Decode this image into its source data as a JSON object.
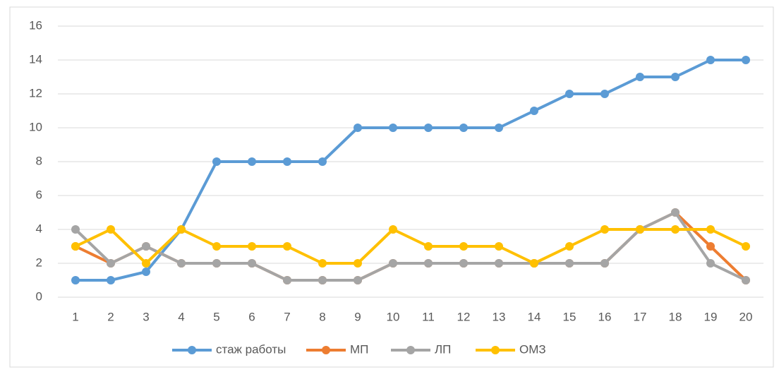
{
  "chart_data": {
    "type": "line",
    "categories": [
      "1",
      "2",
      "3",
      "4",
      "5",
      "6",
      "7",
      "8",
      "9",
      "10",
      "11",
      "12",
      "13",
      "14",
      "15",
      "16",
      "17",
      "18",
      "19",
      "20"
    ],
    "series": [
      {
        "name": "стаж работы",
        "color": "#5b9bd5",
        "values": [
          1,
          1,
          1.5,
          4,
          8,
          8,
          8,
          8,
          10,
          10,
          10,
          10,
          10,
          11,
          12,
          12,
          13,
          13,
          14,
          14
        ]
      },
      {
        "name": "МП",
        "color": "#ed7d31",
        "values": [
          3,
          2,
          3,
          2,
          2,
          2,
          1,
          1,
          1,
          2,
          2,
          2,
          2,
          2,
          2,
          2,
          4,
          5,
          3,
          1
        ]
      },
      {
        "name": "ЛП",
        "color": "#a5a5a5",
        "values": [
          4,
          2,
          3,
          2,
          2,
          2,
          1,
          1,
          1,
          2,
          2,
          2,
          2,
          2,
          2,
          2,
          4,
          5,
          2,
          1
        ]
      },
      {
        "name": "ОМЗ",
        "color": "#ffc000",
        "values": [
          3,
          4,
          2,
          4,
          3,
          3,
          3,
          2,
          2,
          4,
          3,
          3,
          3,
          2,
          3,
          4,
          4,
          4,
          4,
          3
        ]
      }
    ],
    "ylim": [
      0,
      16
    ],
    "yticks": [
      0,
      2,
      4,
      6,
      8,
      10,
      12,
      14,
      16
    ],
    "grid": true,
    "legend": "bottom"
  }
}
